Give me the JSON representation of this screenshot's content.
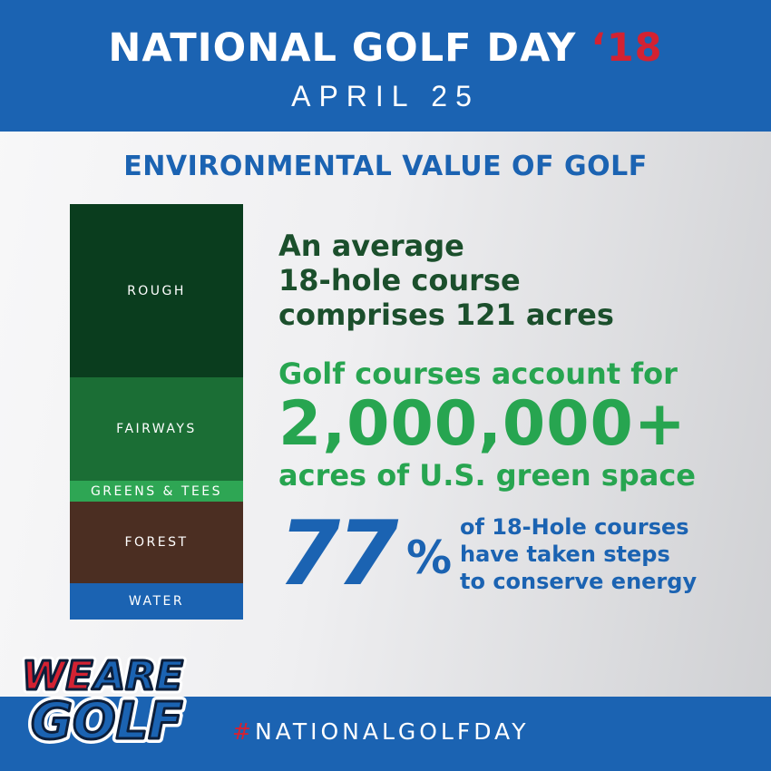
{
  "header": {
    "title": "NATIONAL GOLF DAY",
    "year": "‘18",
    "date": "APRIL 25"
  },
  "section_title": "ENVIRONMENTAL VALUE OF GOLF",
  "land_use": {
    "segments": [
      {
        "label": "ROUGH",
        "color": "#0a3d1e"
      },
      {
        "label": "FAIRWAYS",
        "color": "#1b6e35"
      },
      {
        "label": "GREENS & TEES",
        "color": "#2ea654"
      },
      {
        "label": "FOREST",
        "color": "#4b2e22"
      },
      {
        "label": "WATER",
        "color": "#1b63b2"
      }
    ]
  },
  "fact_average": {
    "lines": [
      "An average",
      "18-hole course",
      "comprises 121 acres"
    ]
  },
  "fact_green_space": {
    "line1": "Golf courses account for",
    "number": "2,000,000+",
    "line3": "acres of U.S. green space"
  },
  "fact_energy": {
    "number": "77",
    "percent_sign": "%",
    "lines": [
      "of 18-Hole courses",
      "have taken steps",
      "to conserve energy"
    ]
  },
  "logo": {
    "line1_red": "WE",
    "line1_blue": "ARE",
    "line2": "GOLF"
  },
  "footer": {
    "hash": "#",
    "hashtag": "NATIONALGOLFDAY"
  },
  "colors": {
    "brand_blue": "#1b63b2",
    "brand_red": "#d32232",
    "dark_green": "#1b4f2c",
    "bright_green": "#27a550"
  }
}
